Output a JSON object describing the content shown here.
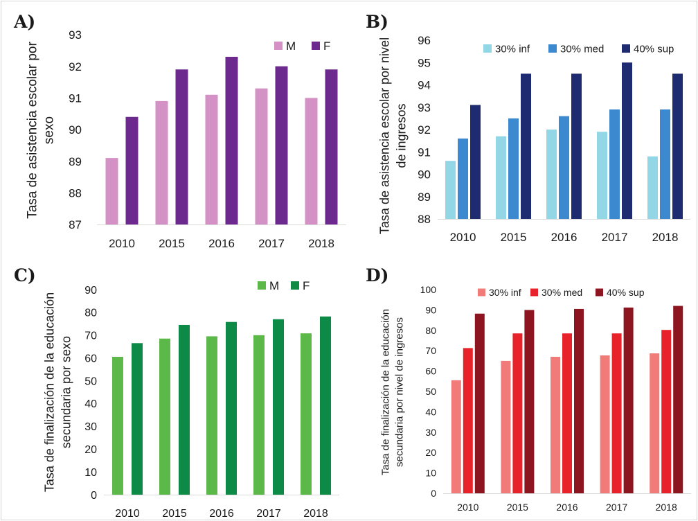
{
  "chart_data": [
    {
      "panel": "A)",
      "type": "bar",
      "categories": [
        "2010",
        "2015",
        "2016",
        "2017",
        "2018"
      ],
      "ylabel": [
        "Tasa de asistencia escolar por",
        "sexo"
      ],
      "ylim": [
        87,
        93
      ],
      "yticks": [
        87,
        88,
        89,
        90,
        91,
        92,
        93
      ],
      "grid": false,
      "legend": "top-right",
      "series": [
        {
          "name": "M",
          "color": "#d391c6",
          "values": [
            89.1,
            90.9,
            91.1,
            91.3,
            91.0
          ]
        },
        {
          "name": "F",
          "color": "#6d2a8e",
          "values": [
            90.4,
            91.9,
            92.3,
            92.0,
            91.9
          ]
        }
      ]
    },
    {
      "panel": "B)",
      "type": "bar",
      "categories": [
        "2010",
        "2015",
        "2016",
        "2017",
        "2018"
      ],
      "ylabel": [
        "Tasa de asistencia escolar por nivel",
        "de ingresos"
      ],
      "ylim": [
        88,
        96
      ],
      "yticks": [
        88,
        89,
        90,
        91,
        92,
        93,
        94,
        95,
        96
      ],
      "grid": false,
      "legend": "top",
      "series": [
        {
          "name": "30% inf",
          "color": "#93d6e6",
          "values": [
            90.6,
            91.7,
            92.0,
            91.9,
            90.8
          ]
        },
        {
          "name": "30% med",
          "color": "#3d89cf",
          "values": [
            91.6,
            92.5,
            92.6,
            92.9,
            92.9
          ]
        },
        {
          "name": "40% sup",
          "color": "#1f2b70",
          "values": [
            93.1,
            94.5,
            94.5,
            95.0,
            94.5
          ]
        }
      ]
    },
    {
      "panel": "C)",
      "type": "bar",
      "categories": [
        "2010",
        "2015",
        "2016",
        "2017",
        "2018"
      ],
      "ylabel": [
        "Tasa de finalización de la educación",
        "secundaria por sexo"
      ],
      "ylim": [
        0,
        90
      ],
      "yticks": [
        0,
        10,
        20,
        30,
        40,
        50,
        60,
        70,
        80,
        90
      ],
      "grid": false,
      "legend": "top-right",
      "series": [
        {
          "name": "M",
          "color": "#5db84a",
          "values": [
            60.5,
            68.5,
            69.5,
            70.0,
            70.8
          ]
        },
        {
          "name": "F",
          "color": "#0d8a45",
          "values": [
            66.5,
            74.5,
            75.8,
            77.0,
            78.2
          ]
        }
      ]
    },
    {
      "panel": "D)",
      "type": "bar",
      "categories": [
        "2010",
        "2015",
        "2016",
        "2017",
        "2018"
      ],
      "ylabel": [
        "Tasa de finalización de la educación",
        "secundaria por nivel de ingresos"
      ],
      "ylim": [
        0,
        100
      ],
      "yticks": [
        0,
        10,
        20,
        30,
        40,
        50,
        60,
        70,
        80,
        90,
        100
      ],
      "grid": false,
      "legend": "top",
      "series": [
        {
          "name": "30% inf",
          "color": "#f07b78",
          "values": [
            55.5,
            65.0,
            67.0,
            67.7,
            68.7
          ]
        },
        {
          "name": "30% med",
          "color": "#e8222a",
          "values": [
            71.3,
            78.5,
            78.5,
            78.5,
            80.2
          ]
        },
        {
          "name": "40% sup",
          "color": "#8c1520",
          "values": [
            88.2,
            90.0,
            90.5,
            91.2,
            92.0
          ]
        }
      ]
    }
  ]
}
